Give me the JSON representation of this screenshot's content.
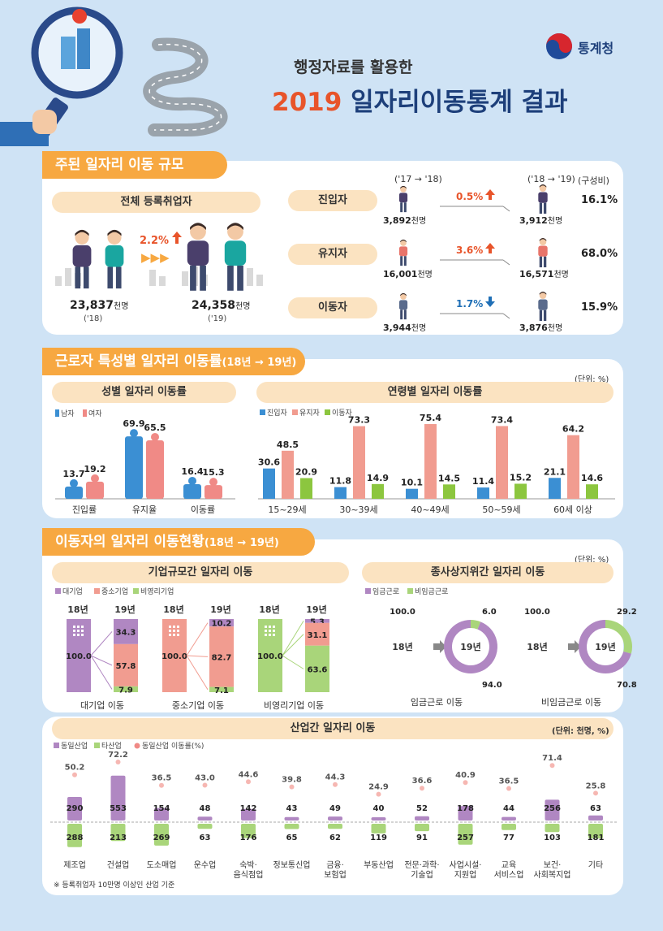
{
  "header": {
    "agency": "통계청",
    "subtitle": "행정자료를 활용한",
    "title_year": "2019",
    "title_rest": " 일자리이동통계 결과"
  },
  "colors": {
    "orange": "#f7a841",
    "blue": "#3b8fd3",
    "pink": "#f08a86",
    "green": "#8cc63f",
    "purple": "#b087c2",
    "salmon": "#f19c90",
    "lightgreen": "#a9d57a"
  },
  "section1": {
    "title": "주된 일자리 이동 규모",
    "total": {
      "label": "전체 등록취업자",
      "growth": "2.2%",
      "y18_value": "23,837",
      "y18_unit": "천명",
      "y18_label": "('18)",
      "y19_value": "24,358",
      "y19_unit": "천명",
      "y19_label": "('19)"
    },
    "header_a": "('17 → '18)",
    "header_b": "('18 → '19)",
    "header_c": "(구성비)",
    "rows": [
      {
        "label": "진입자",
        "change": "0.5%",
        "dir": "up",
        "from_value": "3,892",
        "to_value": "3,912",
        "unit": "천명",
        "share": "16.1%"
      },
      {
        "label": "유지자",
        "change": "3.6%",
        "dir": "up",
        "from_value": "16,001",
        "to_value": "16,571",
        "unit": "천명",
        "share": "68.0%"
      },
      {
        "label": "이동자",
        "change": "1.7%",
        "dir": "down",
        "from_value": "3,944",
        "to_value": "3,876",
        "unit": "천명",
        "share": "15.9%"
      }
    ]
  },
  "section2": {
    "title": "근로자 특성별 일자리 이동률",
    "title_sub": "(18년 → 19년)",
    "unit": "(단위: %)",
    "gender_title": "성별 일자리 이동률",
    "age_title": "연령별 일자리 이동률"
  },
  "section3": {
    "title": "이동자의 일자리 이동현황",
    "title_sub": "(18년 → 19년)",
    "unit": "(단위: %)",
    "size_title": "기업규모간 일자리 이동",
    "status_title": "종사상지위간 일자리 이동",
    "year18": "18년",
    "year19": "19년",
    "status_legend": [
      "임금근로",
      "비임금근로"
    ]
  },
  "section4": {
    "title": "산업간 일자리 이동",
    "unit": "(단위: 천명, %)",
    "footnote": "※ 등록취업자 10만명 이상인 산업 기준"
  },
  "chart_data": [
    {
      "type": "bar",
      "title": "성별 일자리 이동률",
      "categories": [
        "진입률",
        "유지율",
        "이동률"
      ],
      "series": [
        {
          "name": "남자",
          "values": [
            13.7,
            69.9,
            16.4
          ]
        },
        {
          "name": "여자",
          "values": [
            19.2,
            65.5,
            15.3
          ]
        }
      ]
    },
    {
      "type": "bar",
      "title": "연령별 일자리 이동률",
      "categories": [
        "15~29세",
        "30~39세",
        "40~49세",
        "50~59세",
        "60세 이상"
      ],
      "series": [
        {
          "name": "진입자",
          "values": [
            30.6,
            11.8,
            10.1,
            11.4,
            21.1
          ]
        },
        {
          "name": "유지자",
          "values": [
            48.5,
            73.3,
            75.4,
            73.4,
            64.2
          ]
        },
        {
          "name": "이동자",
          "values": [
            20.9,
            14.9,
            14.5,
            15.2,
            14.6
          ]
        }
      ]
    },
    {
      "type": "bar",
      "title": "기업규모간 일자리 이동",
      "legend": [
        "대기업",
        "중소기업",
        "비영리기업"
      ],
      "categories": [
        "대기업 이동",
        "중소기업 이동",
        "비영리기업 이동"
      ],
      "from_value": [
        100.0,
        100.0,
        100.0
      ],
      "to": [
        {
          "대기업": 34.3,
          "중소기업": 57.8,
          "비영리기업": 7.9
        },
        {
          "대기업": 10.2,
          "중소기업": 82.7,
          "비영리기업": 7.1
        },
        {
          "대기업": 5.3,
          "중소기업": 31.1,
          "비영리기업": 63.6
        }
      ]
    },
    {
      "type": "pie",
      "title": "종사상지위간 일자리 이동",
      "categories": [
        "임금근로 이동",
        "비임금근로 이동"
      ],
      "from_value": [
        100.0,
        100.0
      ],
      "to": [
        {
          "임금근로": 94.0,
          "비임금근로": 6.0
        },
        {
          "임금근로": 70.8,
          "비임금근로": 29.2
        }
      ]
    },
    {
      "type": "bar",
      "title": "산업간 일자리 이동",
      "legend": [
        "동일산업",
        "타산업",
        "동일산업 이동률(%)"
      ],
      "categories": [
        "제조업",
        "건설업",
        "도소매업",
        "운수업",
        "숙박·\n음식점업",
        "정보통신업",
        "금융·\n보험업",
        "부동산업",
        "전문·과학·\n기술업",
        "사업시설·\n지원업",
        "교육\n서비스업",
        "보건·\n사회복지업",
        "기타"
      ],
      "series": [
        {
          "name": "동일산업",
          "values": [
            290,
            553,
            154,
            48,
            142,
            43,
            49,
            40,
            52,
            178,
            44,
            256,
            63
          ]
        },
        {
          "name": "타산업",
          "values": [
            288,
            213,
            269,
            63,
            176,
            65,
            62,
            119,
            91,
            257,
            77,
            103,
            181
          ]
        },
        {
          "name": "동일산업 이동률(%)",
          "values": [
            50.2,
            72.2,
            36.5,
            43.0,
            44.6,
            39.8,
            44.3,
            24.9,
            36.6,
            40.9,
            36.5,
            71.4,
            25.8
          ]
        }
      ]
    }
  ]
}
